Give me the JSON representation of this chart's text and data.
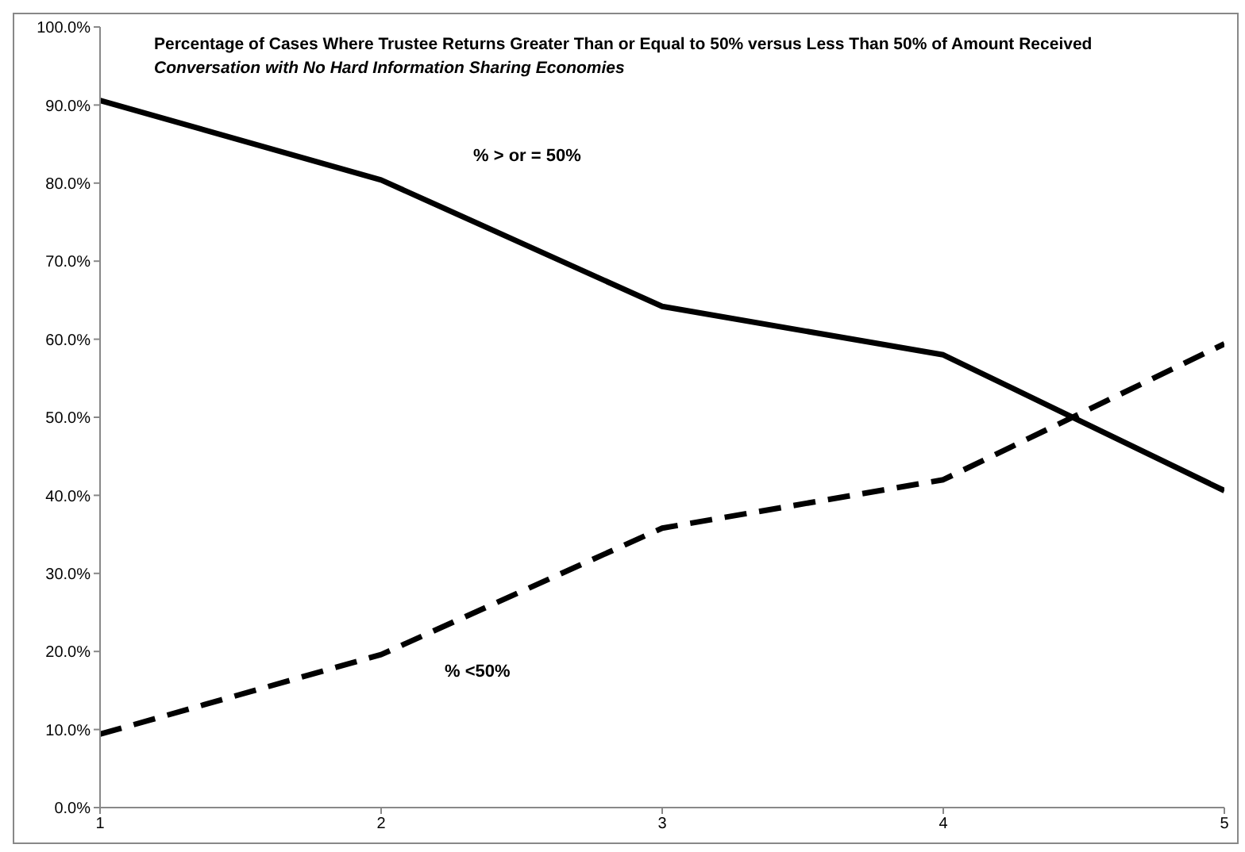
{
  "chart_data": {
    "type": "line",
    "title": "Percentage of Cases Where Trustee Returns Greater Than or Equal to 50%  versus Less Than 50% of Amount Received",
    "subtitle": "Conversation with No Hard Information Sharing Economies",
    "x": [
      1,
      2,
      3,
      4,
      5
    ],
    "xlim": [
      1,
      5
    ],
    "xticks": [
      1,
      2,
      3,
      4,
      5
    ],
    "ylim": [
      0,
      100
    ],
    "yticks": [
      {
        "value": 0,
        "label": "0.0%"
      },
      {
        "value": 10,
        "label": "10.0%"
      },
      {
        "value": 20,
        "label": "20.0%"
      },
      {
        "value": 30,
        "label": "30.0%"
      },
      {
        "value": 40,
        "label": "40.0%"
      },
      {
        "value": 50,
        "label": "50.0%"
      },
      {
        "value": 60,
        "label": "60.0%"
      },
      {
        "value": 70,
        "label": "70.0%"
      },
      {
        "value": 80,
        "label": "80.0%"
      },
      {
        "value": 90,
        "label": "90.0%"
      },
      {
        "value": 100,
        "label": "100.0%"
      }
    ],
    "series": [
      {
        "name": "% > or = 50%",
        "color": "#000000",
        "line_style": "solid",
        "values": [
          90.6,
          80.4,
          64.2,
          58.0,
          40.6
        ]
      },
      {
        "name": "% <50%",
        "color": "#000000",
        "line_style": "dashed",
        "values": [
          9.4,
          19.6,
          35.8,
          42.0,
          59.4
        ]
      }
    ],
    "grid": false,
    "marker": "none"
  }
}
